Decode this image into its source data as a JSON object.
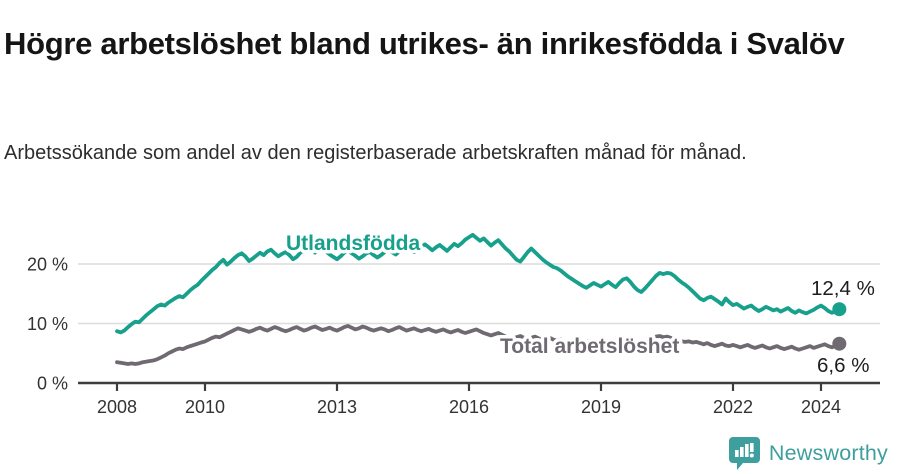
{
  "header": {
    "title": "Högre arbetslöshet bland utrikes- än inrikesfödda i Svalöv",
    "subtitle": "Arbetssökande som andel av den registerbaserade arbetskraften månad för månad."
  },
  "footer": {
    "brand": "Newsworthy",
    "brand_color": "#3f9e9e",
    "logo_icon": "speech-bubble-bar-chart"
  },
  "chart_data": {
    "type": "line",
    "title": "Högre arbetslöshet bland utrikes- än inrikesfödda i Svalöv",
    "subtitle": "Arbetssökande som andel av den registerbaserade arbetskraften månad för månad.",
    "xlabel": "",
    "ylabel": "",
    "x_unit": "month",
    "x_start": "2008-01",
    "x_end": "2024-06",
    "x_tick_years": [
      2008,
      2010,
      2013,
      2016,
      2019,
      2022,
      2024
    ],
    "y_ticks": [
      "0 %",
      "10 %",
      "20 %"
    ],
    "y_tick_values": [
      0,
      10,
      20
    ],
    "ylim": [
      0,
      27
    ],
    "grid": "horizontal",
    "legend": "inline-labels",
    "colors": {
      "axis": "#3d3d3d",
      "gridline": "#dcdcdc",
      "tick_text": "#333333",
      "value_text": "#1d1d1d"
    },
    "series": [
      {
        "name": "Utlandsfödda",
        "color": "#17a08c",
        "end_label": "12,4 %",
        "end_value": 12.4,
        "values": [
          8.7,
          8.5,
          8.8,
          9.4,
          9.9,
          10.3,
          10.2,
          10.8,
          11.4,
          11.9,
          12.4,
          12.9,
          13.2,
          13.0,
          13.5,
          13.9,
          14.3,
          14.6,
          14.4,
          15.0,
          15.6,
          16.1,
          16.5,
          17.2,
          17.8,
          18.4,
          19.0,
          19.5,
          20.2,
          20.7,
          19.9,
          20.4,
          21.0,
          21.5,
          21.8,
          21.3,
          20.5,
          20.9,
          21.4,
          21.9,
          21.5,
          22.1,
          22.4,
          21.8,
          21.3,
          21.7,
          22.0,
          21.5,
          20.8,
          21.2,
          21.9,
          22.3,
          22.7,
          22.4,
          21.9,
          22.3,
          22.6,
          22.1,
          21.6,
          21.2,
          20.8,
          21.3,
          21.9,
          22.2,
          21.8,
          21.4,
          20.9,
          21.3,
          21.8,
          22.0,
          21.5,
          21.1,
          21.5,
          22.0,
          22.4,
          22.0,
          21.6,
          22.1,
          22.5,
          22.9,
          22.4,
          22.0,
          22.5,
          22.9,
          23.3,
          22.8,
          22.3,
          22.8,
          23.2,
          22.7,
          22.2,
          22.8,
          23.4,
          23.0,
          23.5,
          24.1,
          24.5,
          24.9,
          24.4,
          23.9,
          24.3,
          23.7,
          23.1,
          23.6,
          24.0,
          23.3,
          22.6,
          22.1,
          21.4,
          20.7,
          20.4,
          21.2,
          22.0,
          22.6,
          22.0,
          21.4,
          20.8,
          20.3,
          19.9,
          19.5,
          19.3,
          18.9,
          18.4,
          17.9,
          17.5,
          17.1,
          16.7,
          16.3,
          16.0,
          16.4,
          16.8,
          16.5,
          16.2,
          16.6,
          17.0,
          16.5,
          16.1,
          16.8,
          17.4,
          17.6,
          17.0,
          16.2,
          15.6,
          15.3,
          15.9,
          16.6,
          17.3,
          18.0,
          18.5,
          18.3,
          18.5,
          18.4,
          18.0,
          17.4,
          16.9,
          16.5,
          16.0,
          15.4,
          14.8,
          14.2,
          13.9,
          14.3,
          14.5,
          14.1,
          13.7,
          13.2,
          14.2,
          13.6,
          13.1,
          13.3,
          12.9,
          12.5,
          12.8,
          13.0,
          12.5,
          12.1,
          12.4,
          12.8,
          12.5,
          12.2,
          12.4,
          12.0,
          12.3,
          12.6,
          12.1,
          11.8,
          12.2,
          11.9,
          11.7,
          12.0,
          12.3,
          12.7,
          13.0,
          12.6,
          12.1,
          11.8,
          12.1,
          12.4
        ]
      },
      {
        "name": "Total arbetslöshet",
        "color": "#6f6a72",
        "end_label": "6,6 %",
        "end_value": 6.6,
        "values": [
          3.5,
          3.4,
          3.3,
          3.2,
          3.3,
          3.2,
          3.3,
          3.5,
          3.6,
          3.7,
          3.8,
          4.0,
          4.3,
          4.6,
          5.0,
          5.3,
          5.6,
          5.8,
          5.7,
          6.0,
          6.2,
          6.4,
          6.6,
          6.8,
          7.0,
          7.3,
          7.6,
          7.8,
          7.7,
          8.0,
          8.3,
          8.6,
          8.9,
          9.2,
          9.0,
          8.8,
          8.6,
          8.8,
          9.1,
          9.3,
          9.0,
          8.8,
          9.1,
          9.4,
          9.2,
          8.9,
          8.7,
          8.9,
          9.2,
          9.4,
          9.1,
          8.8,
          9.0,
          9.3,
          9.5,
          9.2,
          8.9,
          9.1,
          9.3,
          9.0,
          8.8,
          9.1,
          9.4,
          9.6,
          9.3,
          9.0,
          9.2,
          9.5,
          9.3,
          9.0,
          8.8,
          9.0,
          9.2,
          9.0,
          8.7,
          8.9,
          9.2,
          9.4,
          9.1,
          8.8,
          9.0,
          9.2,
          8.9,
          8.7,
          8.9,
          9.1,
          8.8,
          8.6,
          8.8,
          9.0,
          8.7,
          8.5,
          8.7,
          8.9,
          8.6,
          8.4,
          8.6,
          8.8,
          9.0,
          8.7,
          8.4,
          8.2,
          8.0,
          8.2,
          8.4,
          8.1,
          7.8,
          7.6,
          7.5,
          7.7,
          7.9,
          7.6,
          7.4,
          7.6,
          7.8,
          7.5,
          7.3,
          7.4,
          7.6,
          7.3,
          7.1,
          7.3,
          7.0,
          6.8,
          7.0,
          7.2,
          6.9,
          6.7,
          6.9,
          7.1,
          6.8,
          6.6,
          6.8,
          7.0,
          6.7,
          6.5,
          6.7,
          6.9,
          6.6,
          6.8,
          7.0,
          6.7,
          6.5,
          6.6,
          6.9,
          7.2,
          7.5,
          7.8,
          7.9,
          7.7,
          7.8,
          7.6,
          7.4,
          7.2,
          7.0,
          6.9,
          7.0,
          6.8,
          6.9,
          6.7,
          6.5,
          6.7,
          6.4,
          6.2,
          6.4,
          6.6,
          6.3,
          6.2,
          6.4,
          6.2,
          6.0,
          6.2,
          6.4,
          6.1,
          5.9,
          6.1,
          6.3,
          6.0,
          5.8,
          6.0,
          6.2,
          5.9,
          5.7,
          5.9,
          6.1,
          5.8,
          5.6,
          5.8,
          6.0,
          6.2,
          5.9,
          6.1,
          6.3,
          6.5,
          6.2,
          6.0,
          6.3,
          6.6
        ]
      }
    ]
  }
}
